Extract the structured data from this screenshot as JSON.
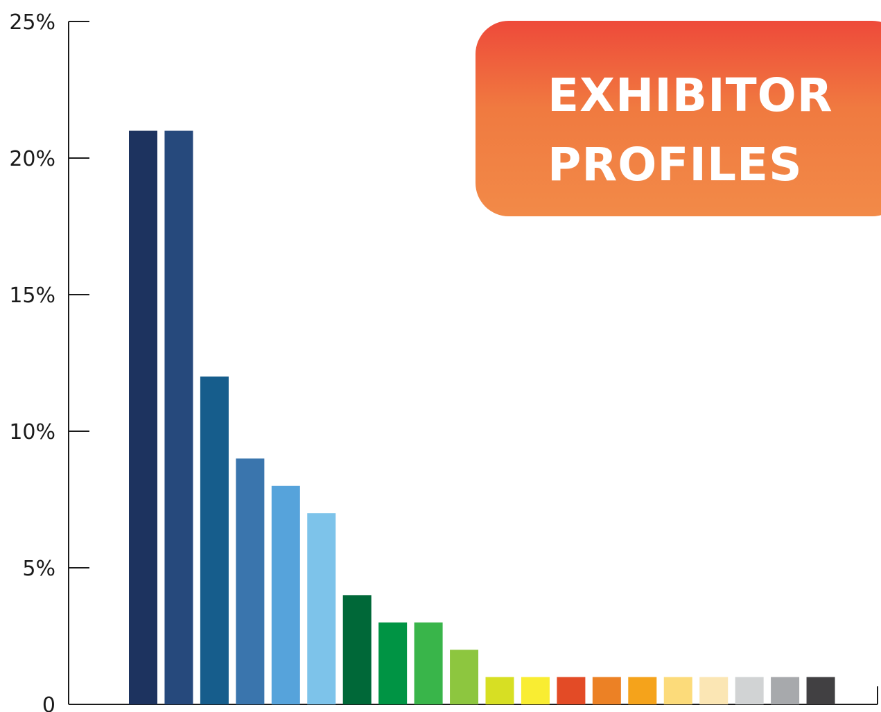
{
  "chart_data": {
    "type": "bar",
    "title_lines": [
      "EXHIBITOR",
      "PROFILES"
    ],
    "xlabel": "",
    "ylabel": "",
    "ylim": [
      0,
      25
    ],
    "yticks": [
      {
        "value": 0,
        "label": "0"
      },
      {
        "value": 5,
        "label": "5%"
      },
      {
        "value": 10,
        "label": "10%"
      },
      {
        "value": 15,
        "label": "15%"
      },
      {
        "value": 20,
        "label": "20%"
      },
      {
        "value": 25,
        "label": "25%"
      }
    ],
    "legend": "none",
    "grid": false,
    "values": [
      21,
      21,
      12,
      9,
      8,
      7,
      4,
      3,
      3,
      2,
      1,
      1,
      1,
      1,
      1,
      1,
      1,
      1,
      1,
      1
    ],
    "colors": [
      "#1d335f",
      "#26497c",
      "#165d8c",
      "#3a75ad",
      "#56a3db",
      "#7dc3ea",
      "#006838",
      "#009444",
      "#39b54a",
      "#8dc63f",
      "#d7df23",
      "#f9ed32",
      "#e34b26",
      "#ec8125",
      "#f5a31b",
      "#fcdb7a",
      "#fbe6b4",
      "#d1d3d4",
      "#a7a9ac",
      "#414042"
    ]
  }
}
